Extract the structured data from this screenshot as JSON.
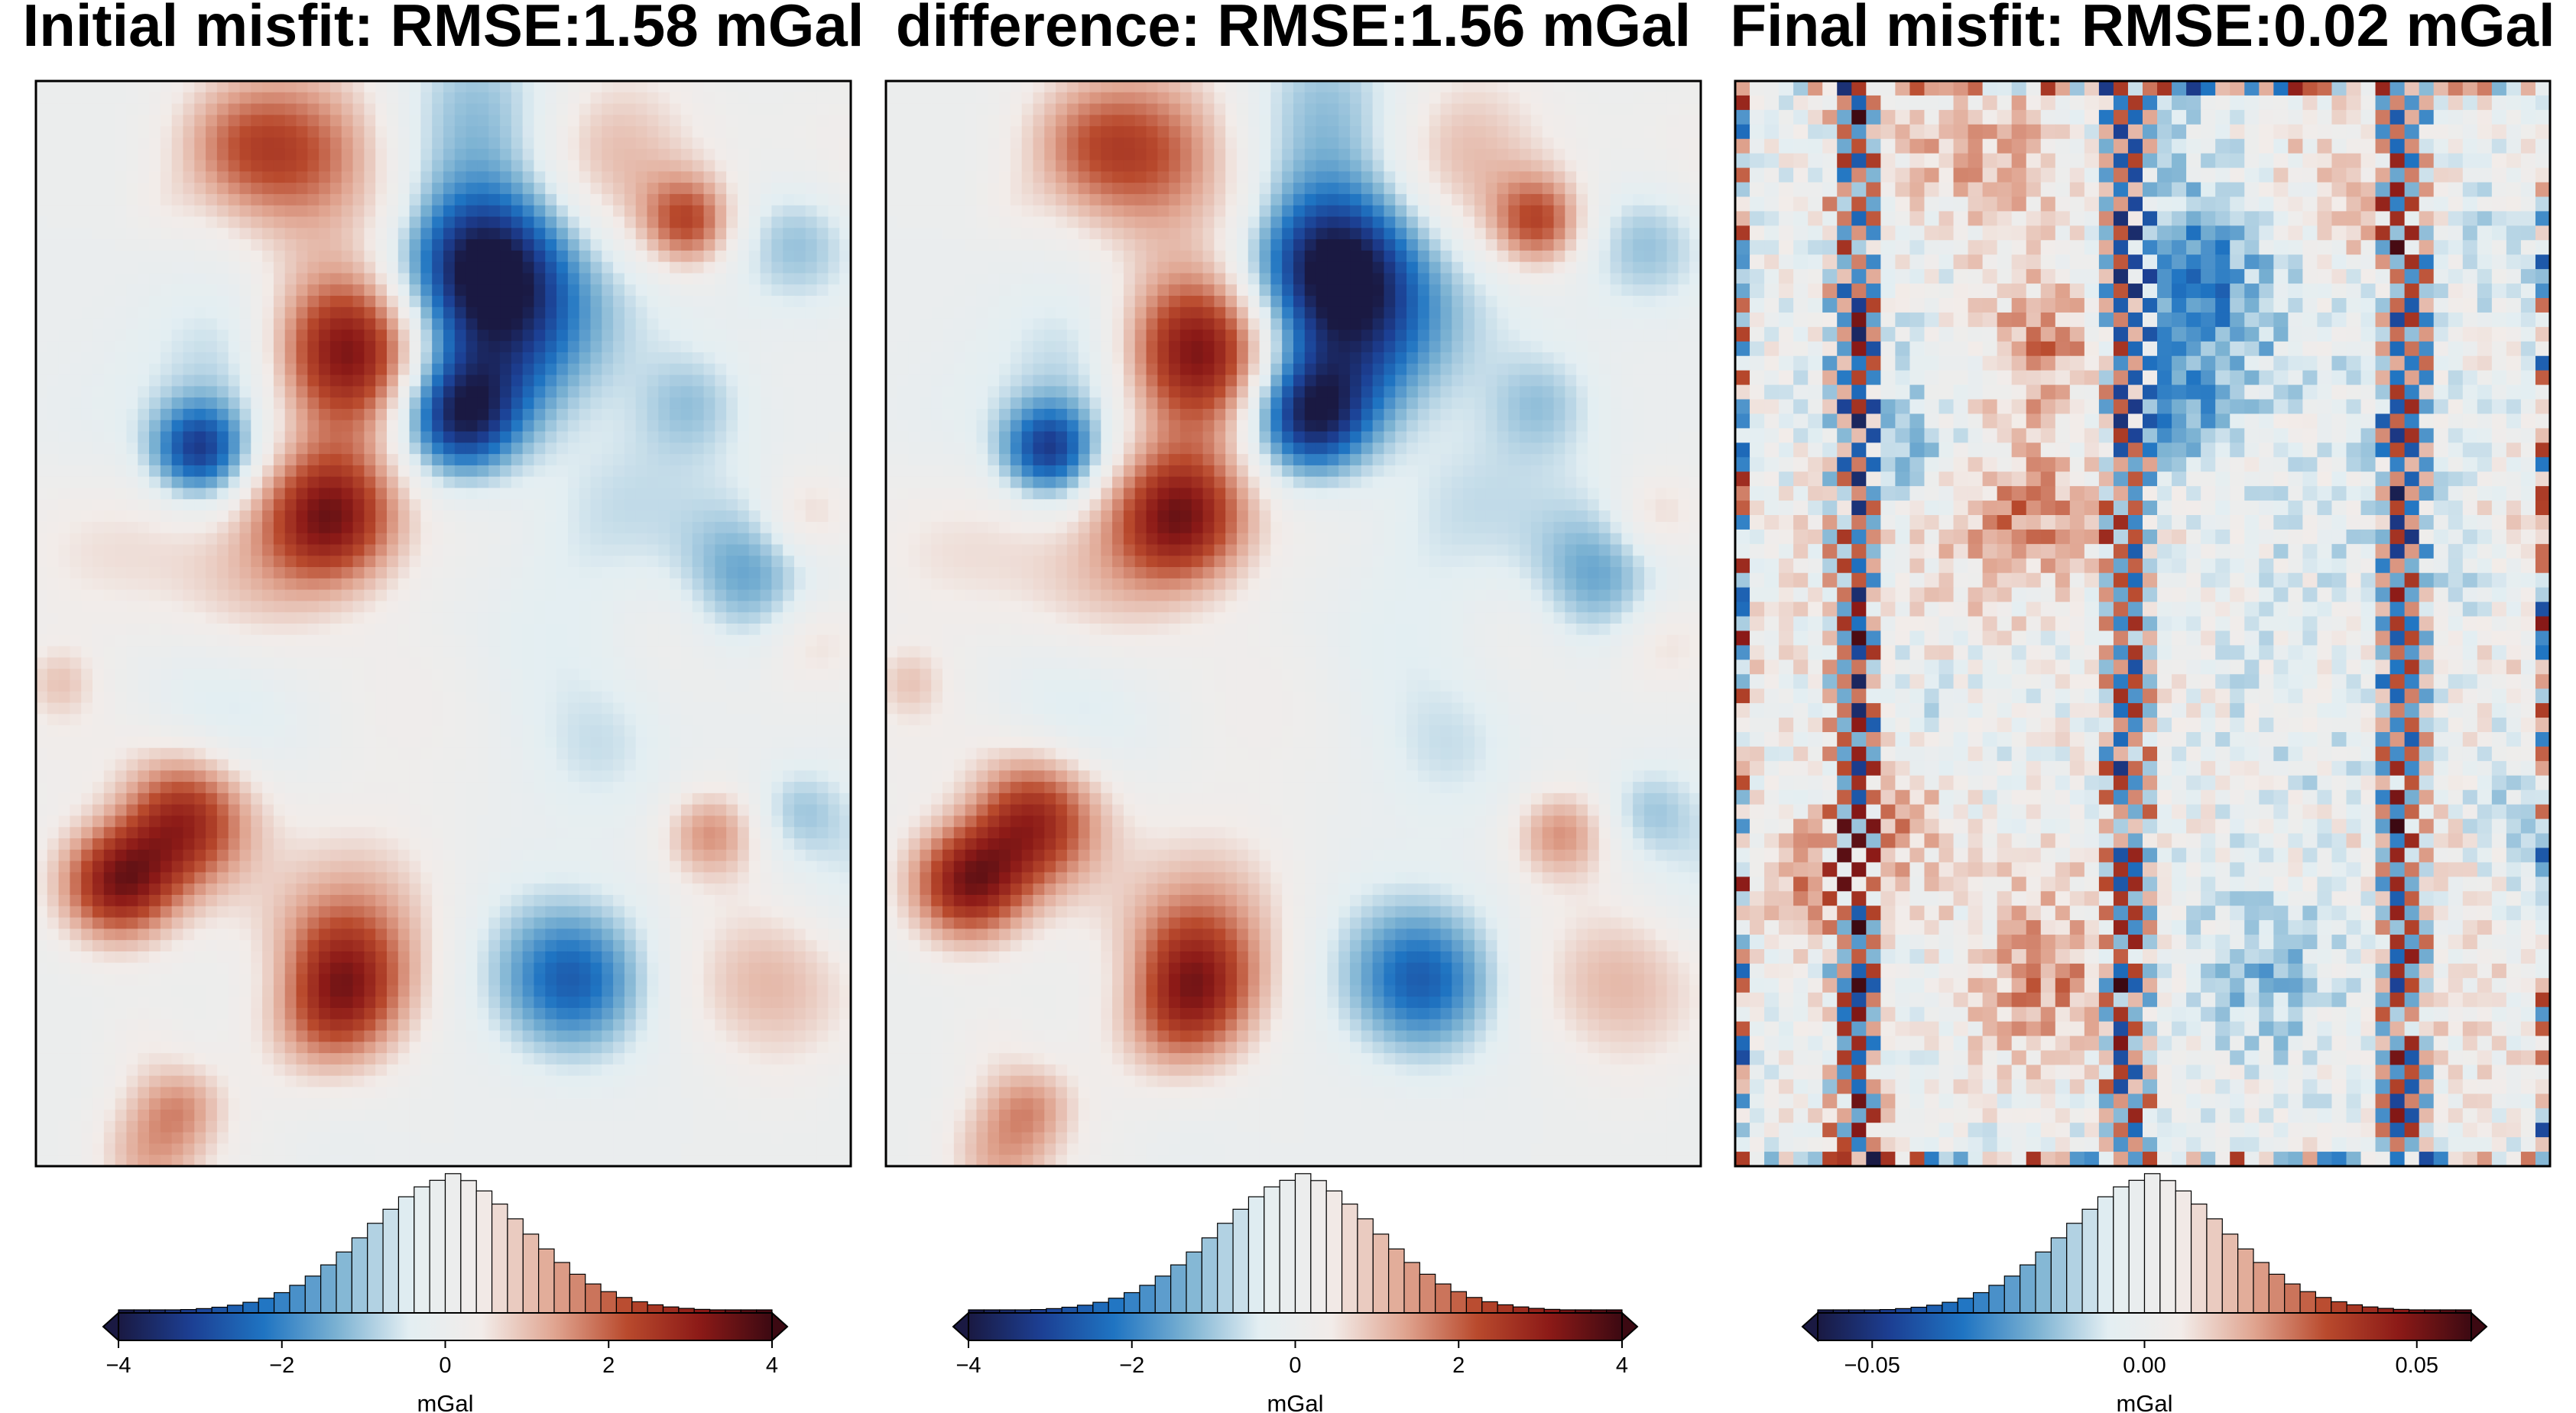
{
  "chart_data": [
    {
      "type": "heatmap",
      "title": "Initial misfit: RMSE:1.58 mGal",
      "colorbar": {
        "label": "mGal",
        "range": [
          -4,
          4
        ],
        "ticks": [
          -4,
          -2,
          0,
          2,
          4
        ],
        "tick_labels": [
          "−4",
          "−2",
          "0",
          "2",
          "4"
        ],
        "extend": "both",
        "histogram": true
      },
      "colormap": "diverging-blue-white-red"
    },
    {
      "type": "heatmap",
      "title": "difference: RMSE:1.56 mGal",
      "colorbar": {
        "label": "mGal",
        "range": [
          -4,
          4
        ],
        "ticks": [
          -4,
          -2,
          0,
          2,
          4
        ],
        "tick_labels": [
          "−4",
          "−2",
          "0",
          "2",
          "4"
        ],
        "extend": "both",
        "histogram": true
      },
      "colormap": "diverging-blue-white-red"
    },
    {
      "type": "heatmap",
      "title": "Final misfit: RMSE:0.02 mGal",
      "colorbar": {
        "label": "mGal",
        "range": [
          -0.06,
          0.06
        ],
        "ticks": [
          -0.05,
          0.0,
          0.05
        ],
        "tick_labels": [
          "−0.05",
          "0.00",
          "0.05"
        ],
        "extend": "both",
        "histogram": true
      },
      "colormap": "diverging-blue-white-red"
    }
  ],
  "colors": {
    "colormap_stops": [
      "#1a1942",
      "#1c3f93",
      "#1f74c2",
      "#7ab1d2",
      "#e3eef2",
      "#f2ece9",
      "#e0a591",
      "#b94a2d",
      "#8c1a17",
      "#3c0912"
    ],
    "frame": "#000000"
  }
}
